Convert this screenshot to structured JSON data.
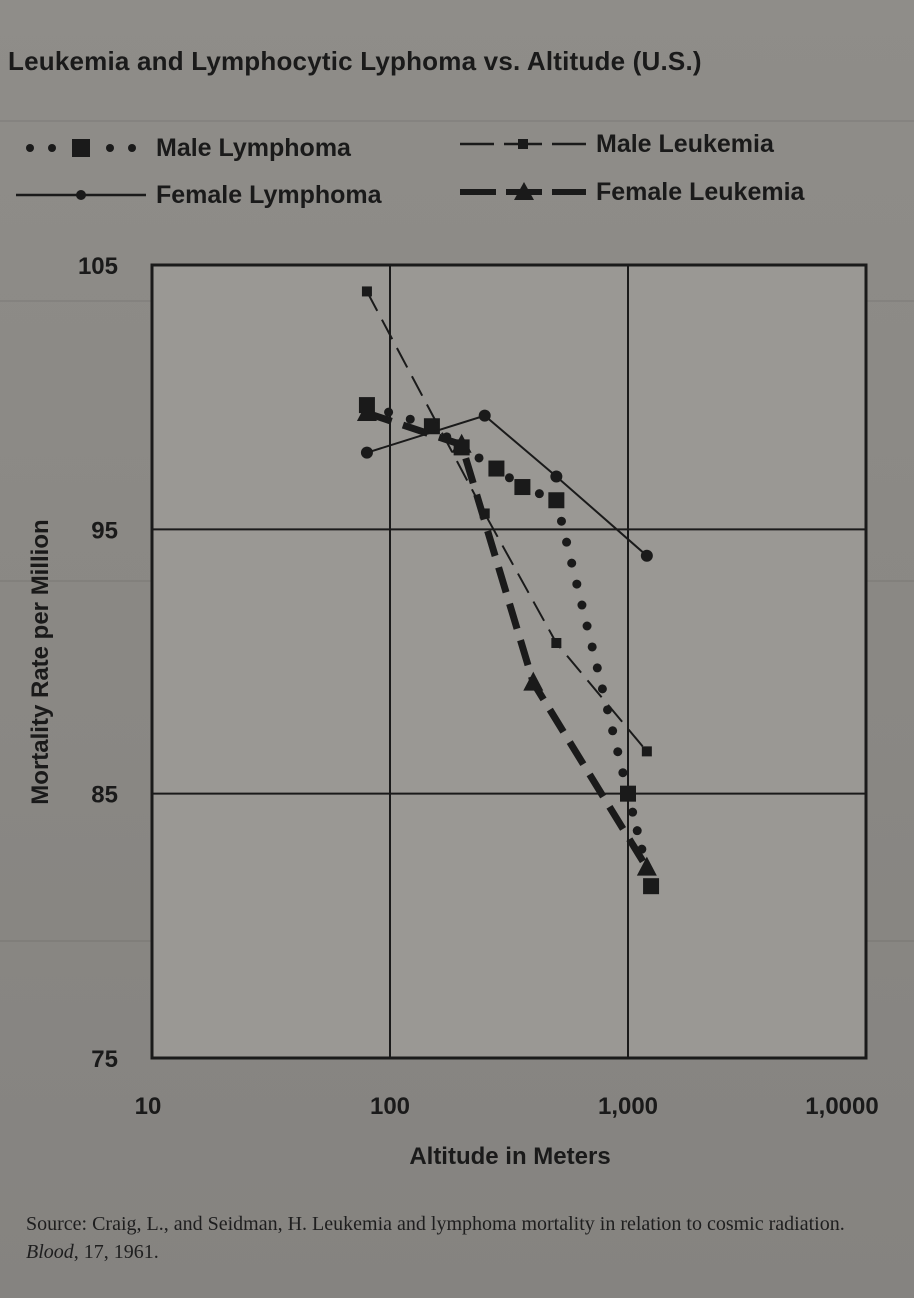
{
  "chart_data": {
    "type": "line",
    "title": "Leukemia and Lymphocytic Lyphoma vs. Altitude (U.S.)",
    "xlabel": "Altitude in Meters",
    "ylabel": "Mortality Rate per Million",
    "x_scale": "log",
    "xlim": [
      10,
      10000
    ],
    "ylim": [
      75,
      105
    ],
    "x_ticks": [
      10,
      100,
      1000,
      10000
    ],
    "x_tick_labels": [
      "10",
      "100",
      "1,000",
      "1,0000"
    ],
    "y_ticks": [
      75,
      85,
      95,
      105
    ],
    "y_tick_labels": [
      "75",
      "85",
      "95",
      "105"
    ],
    "grid": true,
    "legend_position": "top",
    "series": [
      {
        "name": "Male Lymphoma",
        "style": "dotted-square",
        "x": [
          80,
          150,
          200,
          280,
          360,
          500,
          1000,
          1250
        ],
        "y": [
          99.7,
          98.9,
          98.1,
          97.3,
          96.6,
          96.1,
          85.0,
          81.5
        ]
      },
      {
        "name": "Female Lymphoma",
        "style": "solid-circle",
        "x": [
          80,
          250,
          500,
          1200
        ],
        "y": [
          97.9,
          99.3,
          97.0,
          94.0
        ]
      },
      {
        "name": "Male Leukemia",
        "style": "dashed-small-square",
        "x": [
          80,
          250,
          500,
          1200
        ],
        "y": [
          104.0,
          95.6,
          90.7,
          86.6
        ]
      },
      {
        "name": "Female Leukemia",
        "style": "heavy-dashed-triangle",
        "x": [
          80,
          200,
          400,
          1200
        ],
        "y": [
          99.4,
          98.2,
          89.2,
          82.2
        ]
      }
    ],
    "source_text": {
      "prefix": "Source: Craig, L., and Seidman, H. Leukemia and lymphoma mortality in relation to cosmic radiation.",
      "journal": "Blood",
      "suffix": ", 17, 1961."
    }
  },
  "colors": {
    "background": "#8c8a86",
    "plot_area": "#9a9894",
    "ink": "#1a1a1a"
  }
}
